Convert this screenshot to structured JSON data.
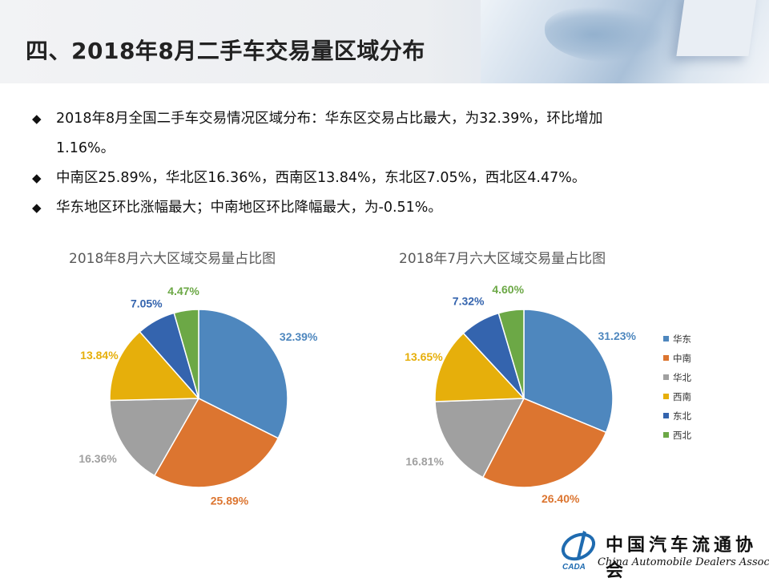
{
  "title": "四、2018年8月二手车交易量区域分布",
  "bullets": [
    {
      "text": "2018年8月全国二手车交易情况区域分布：华东区交易占比最大，为32.39%，环比增加",
      "continuation": "1.16%。"
    },
    {
      "text": "中南区25.89%，华北区16.36%，西南区13.84%，东北区7.05%，西北区4.47%。",
      "continuation": ""
    },
    {
      "text": "华东地区环比涨幅最大；中南地区环比降幅最大，为-0.51%。",
      "continuation": ""
    }
  ],
  "bullet_glyph": "◆",
  "logo": {
    "cn": "中国汽车流通协会",
    "en": "China Automobile Dealers Association",
    "mark": "CADA"
  },
  "chart_data": [
    {
      "type": "pie",
      "title": "2018年8月六大区域交易量占比图",
      "categories": [
        "华东",
        "中南",
        "华北",
        "西南",
        "东北",
        "西北"
      ],
      "values": [
        32.39,
        25.89,
        16.36,
        13.84,
        7.05,
        4.47
      ],
      "labels": [
        "32.39%",
        "25.89%",
        "16.36%",
        "13.84%",
        "7.05%",
        "4.47%"
      ],
      "colors": [
        "#4E87BE",
        "#DC7530",
        "#A0A0A0",
        "#E6AF0B",
        "#3464AE",
        "#6CA846"
      ],
      "legend": "none"
    },
    {
      "type": "pie",
      "title": "2018年7月六大区域交易量占比图",
      "categories": [
        "华东",
        "中南",
        "华北",
        "西南",
        "东北",
        "西北"
      ],
      "values": [
        31.23,
        26.4,
        16.81,
        13.65,
        7.32,
        4.6
      ],
      "labels": [
        "31.23%",
        "26.40%",
        "16.81%",
        "13.65%",
        "7.32%",
        "4.60%"
      ],
      "colors": [
        "#4E87BE",
        "#DC7530",
        "#A0A0A0",
        "#E6AF0B",
        "#3464AE",
        "#6CA846"
      ],
      "legend": "right"
    }
  ]
}
